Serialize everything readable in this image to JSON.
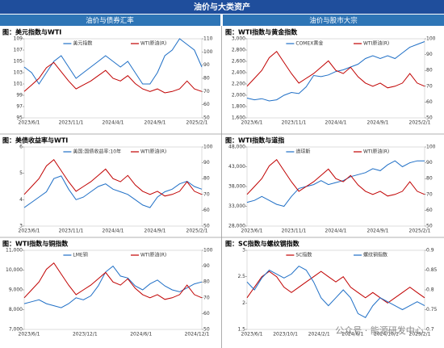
{
  "header": {
    "title": "油价与大类资产",
    "left": "油价与债券汇率",
    "right": "油价与股市大宗"
  },
  "watermark": "公众号 · 能源研发中心",
  "chart_data": [
    {
      "type": "line",
      "title": "图：美元指数与WTI",
      "xtick_labels": [
        "2023/6/1",
        "2023/11/1",
        "2024/4/1",
        "2024/9/1",
        "2025/2/1"
      ],
      "ylim": [
        95,
        109
      ],
      "yticks": [
        95,
        97,
        99,
        101,
        103,
        105,
        107,
        109
      ],
      "y2lim": [
        50,
        110
      ],
      "y2ticks": [
        50,
        60,
        70,
        80,
        90,
        100,
        110
      ],
      "series": [
        {
          "name": "美元指数",
          "color": "#1f6fc6",
          "values": [
            104,
            103,
            101,
            103,
            105,
            106,
            104,
            102,
            103,
            104,
            105,
            106,
            105,
            104,
            105,
            103,
            101,
            101,
            103,
            106,
            107,
            109,
            108,
            107,
            104
          ]
        },
        {
          "name": "WTI原油(R)",
          "color": "#c00000",
          "axis": "y2",
          "values": [
            70,
            75,
            80,
            88,
            92,
            85,
            78,
            72,
            75,
            78,
            82,
            86,
            80,
            78,
            82,
            76,
            72,
            70,
            72,
            69,
            70,
            72,
            78,
            72,
            70
          ]
        }
      ]
    },
    {
      "type": "line",
      "title": "图：WTI指数与黄金指数",
      "xtick_labels": [
        "2023/6/1",
        "2023/11/1",
        "2024/4/1",
        "2024/9/1",
        "2025/2/1"
      ],
      "ylim": [
        1600,
        3000
      ],
      "yticks": [
        {
          "value": 1600,
          "label": "1,600"
        },
        {
          "value": 1800,
          "label": "1,800"
        },
        {
          "value": 2000,
          "label": "2,000"
        },
        {
          "value": 2200,
          "label": "2,200"
        },
        {
          "value": 2400,
          "label": "2,400"
        },
        {
          "value": 2600,
          "label": "2,600"
        },
        {
          "value": 2800,
          "label": "2,800"
        },
        {
          "value": 3000,
          "label": "3,000"
        }
      ],
      "y2lim": [
        50,
        100
      ],
      "y2ticks": [
        50,
        60,
        70,
        80,
        90,
        100
      ],
      "series": [
        {
          "name": "COMEX黄金",
          "color": "#1f6fc6",
          "values": [
            1950,
            1920,
            1940,
            1900,
            1920,
            2000,
            2050,
            2030,
            2150,
            2350,
            2330,
            2360,
            2420,
            2450,
            2500,
            2550,
            2650,
            2700,
            2650,
            2700,
            2650,
            2750,
            2850,
            2900,
            2950
          ]
        },
        {
          "name": "WTI原油(R)",
          "color": "#c00000",
          "axis": "y2",
          "values": [
            70,
            75,
            80,
            88,
            92,
            85,
            78,
            72,
            75,
            78,
            82,
            86,
            80,
            78,
            82,
            76,
            72,
            70,
            72,
            69,
            70,
            72,
            78,
            72,
            70
          ]
        }
      ]
    },
    {
      "type": "line",
      "title": "图：美债收益率与WTI",
      "xtick_labels": [
        "2023/6/1",
        "2023/11/1",
        "2024/4/1",
        "2024/9/1",
        "2025/2/1"
      ],
      "ylim": [
        3,
        6
      ],
      "yticks": [
        3,
        4,
        5,
        6
      ],
      "y2lim": [
        50,
        100
      ],
      "y2ticks": [
        50,
        60,
        70,
        80,
        90,
        100
      ],
      "series": [
        {
          "name": "美国:国债收益率:10年",
          "color": "#1f6fc6",
          "values": [
            3.7,
            3.9,
            4.1,
            4.3,
            4.8,
            4.9,
            4.4,
            4.0,
            4.1,
            4.3,
            4.5,
            4.6,
            4.4,
            4.3,
            4.2,
            4.0,
            3.8,
            3.7,
            4.1,
            4.3,
            4.4,
            4.6,
            4.7,
            4.5,
            4.4
          ]
        },
        {
          "name": "WTI原油(R)",
          "color": "#c00000",
          "axis": "y2",
          "values": [
            70,
            75,
            80,
            88,
            92,
            85,
            78,
            72,
            75,
            78,
            82,
            86,
            80,
            78,
            82,
            76,
            72,
            70,
            72,
            69,
            70,
            72,
            78,
            72,
            70
          ]
        }
      ]
    },
    {
      "type": "line",
      "title": "图：WTI指数与道指",
      "xtick_labels": [
        "2023/6/1",
        "2023/11/1",
        "2024/4/1",
        "2024/9/1",
        "2025/2/1"
      ],
      "ylim": [
        28000,
        48000
      ],
      "yticks": [
        {
          "value": 28000,
          "label": "28,000"
        },
        {
          "value": 33000,
          "label": "33,000"
        },
        {
          "value": 38000,
          "label": "38,000"
        },
        {
          "value": 43000,
          "label": "43,000"
        },
        {
          "value": 48000,
          "label": "48,000"
        }
      ],
      "y2lim": [
        50,
        100
      ],
      "y2ticks": [
        50,
        60,
        70,
        80,
        90,
        100
      ],
      "series": [
        {
          "name": "道琼斯",
          "color": "#1f6fc6",
          "values": [
            34000,
            34500,
            35500,
            34500,
            33500,
            33000,
            35500,
            37500,
            38000,
            38500,
            39500,
            38500,
            39000,
            39500,
            40500,
            41000,
            41500,
            42500,
            42000,
            43500,
            44500,
            43000,
            44000,
            44500,
            44500
          ]
        },
        {
          "name": "WTI原油(R)",
          "color": "#c00000",
          "axis": "y2",
          "values": [
            70,
            75,
            80,
            88,
            92,
            85,
            78,
            72,
            75,
            78,
            82,
            86,
            80,
            78,
            82,
            76,
            72,
            70,
            72,
            69,
            70,
            72,
            78,
            72,
            70
          ]
        }
      ]
    },
    {
      "type": "line",
      "title": "图：WTI指数与铜指数",
      "xtick_labels": [
        "2023/6/1",
        "2023/12/1",
        "2024/6/1",
        "2024/12/1"
      ],
      "ylim": [
        7000,
        11000
      ],
      "yticks": [
        {
          "value": 7000,
          "label": "7,000"
        },
        {
          "value": 8000,
          "label": "8,000"
        },
        {
          "value": 9000,
          "label": "9,000"
        },
        {
          "value": 10000,
          "label": "10,000"
        },
        {
          "value": 11000,
          "label": "11,000"
        }
      ],
      "y2lim": [
        50,
        100
      ],
      "y2ticks": [
        50,
        60,
        70,
        80,
        90,
        100
      ],
      "series": [
        {
          "name": "LME铜",
          "color": "#1f6fc6",
          "values": [
            8300,
            8400,
            8500,
            8300,
            8200,
            8100,
            8300,
            8600,
            8500,
            8700,
            9200,
            9900,
            10200,
            9700,
            9600,
            9200,
            9000,
            9300,
            9500,
            9200,
            9000,
            8900,
            9100,
            9300,
            9400
          ]
        },
        {
          "name": "WTI原油(R)",
          "color": "#c00000",
          "axis": "y2",
          "values": [
            70,
            75,
            80,
            88,
            92,
            85,
            78,
            72,
            75,
            78,
            82,
            86,
            80,
            78,
            82,
            76,
            72,
            70,
            72,
            69,
            70,
            72,
            78,
            72,
            70
          ]
        }
      ]
    },
    {
      "type": "line",
      "title": "图：SC指数与螺纹钢指数",
      "xtick_labels": [
        "2023/6/1",
        "2023/10/1",
        "2024/2/1",
        "2024/6/1",
        "2024/10/1",
        "2025/2/1"
      ],
      "ylim": [
        1.5,
        3
      ],
      "yticks": [
        1.5,
        2,
        2.5,
        3
      ],
      "y2lim": [
        0.7,
        0.9
      ],
      "y2ticks": [
        0.7,
        0.75,
        0.8,
        0.85,
        0.9
      ],
      "series": [
        {
          "name": "SC指数",
          "color": "#c00000",
          "values": [
            2.1,
            2.3,
            2.5,
            2.6,
            2.5,
            2.3,
            2.2,
            2.3,
            2.4,
            2.5,
            2.6,
            2.5,
            2.4,
            2.5,
            2.3,
            2.2,
            2.1,
            2.2,
            2.1,
            2.0,
            2.1,
            2.2,
            2.3,
            2.2,
            2.1
          ]
        },
        {
          "name": "螺纹钢指数",
          "color": "#1f6fc6",
          "axis": "y2",
          "values": [
            0.82,
            0.8,
            0.83,
            0.85,
            0.84,
            0.83,
            0.84,
            0.86,
            0.85,
            0.82,
            0.78,
            0.76,
            0.78,
            0.8,
            0.78,
            0.74,
            0.73,
            0.76,
            0.78,
            0.77,
            0.76,
            0.75,
            0.76,
            0.77,
            0.76
          ]
        }
      ]
    }
  ]
}
